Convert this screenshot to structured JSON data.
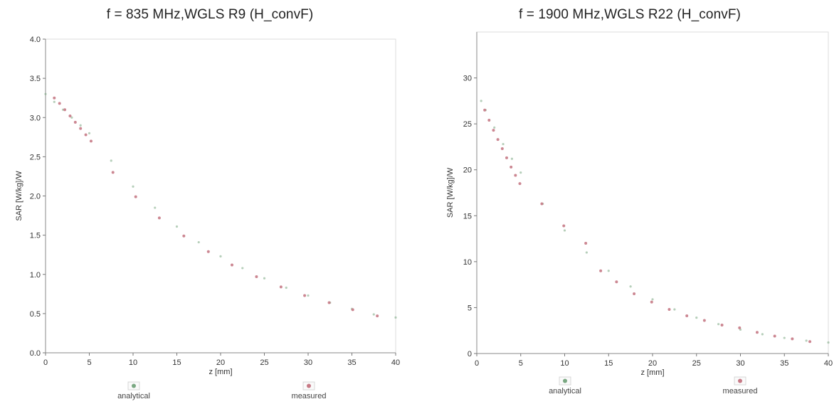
{
  "charts": [
    {
      "title": "f = 835 MHz,WGLS R9 (H_convF)"
    },
    {
      "title": "f = 1900 MHz,WGLS R22 (H_convF)"
    }
  ],
  "chart_data": [
    {
      "type": "scatter",
      "title": "f = 835 MHz,WGLS R9 (H_convF)",
      "xlabel": "z [mm]",
      "ylabel": "SAR [W/kg]/W",
      "xlim": [
        0,
        40
      ],
      "ylim": [
        0,
        4.0
      ],
      "xticks": [
        0,
        5,
        10,
        15,
        20,
        25,
        30,
        35,
        40
      ],
      "yticks": [
        0.0,
        0.5,
        1.0,
        1.5,
        2.0,
        2.5,
        3.0,
        3.5,
        4.0
      ],
      "ytick_labels": [
        "0.0",
        "0.5",
        "1.0",
        "1.5",
        "2.0",
        "2.5",
        "3.0",
        "3.5",
        "4.0"
      ],
      "legend_position": "bottom",
      "series": [
        {
          "name": "analytical",
          "color": "#7aa882",
          "x": [
            0,
            1,
            2,
            3,
            4,
            5,
            7.5,
            10,
            12.5,
            15,
            17.5,
            20,
            22.5,
            25,
            27.5,
            30,
            32.5,
            35,
            37.5,
            40
          ],
          "y": [
            3.3,
            3.2,
            3.1,
            3.0,
            2.9,
            2.8,
            2.45,
            2.12,
            1.85,
            1.61,
            1.41,
            1.23,
            1.08,
            0.95,
            0.83,
            0.73,
            0.64,
            0.56,
            0.49,
            0.45
          ]
        },
        {
          "name": "measured",
          "color": "#c77a86",
          "x": [
            1.0,
            1.6,
            2.2,
            2.8,
            3.4,
            4.0,
            4.6,
            5.2,
            7.7,
            10.3,
            13.0,
            15.8,
            18.6,
            21.3,
            24.1,
            26.9,
            29.6,
            32.4,
            35.1,
            37.9
          ],
          "y": [
            3.25,
            3.18,
            3.1,
            3.02,
            2.94,
            2.86,
            2.78,
            2.7,
            2.3,
            1.99,
            1.72,
            1.49,
            1.29,
            1.12,
            0.97,
            0.84,
            0.73,
            0.64,
            0.55,
            0.47
          ]
        }
      ]
    },
    {
      "type": "scatter",
      "title": "f = 1900 MHz,WGLS R22 (H_convF)",
      "xlabel": "z [mm]",
      "ylabel": "SAR [W/kg]/W",
      "xlim": [
        0,
        40
      ],
      "ylim": [
        0,
        35
      ],
      "xticks": [
        0,
        5,
        10,
        15,
        20,
        25,
        30,
        35,
        40
      ],
      "yticks": [
        0,
        5,
        10,
        15,
        20,
        25,
        30
      ],
      "ytick_labels": [
        "0",
        "5",
        "10",
        "15",
        "20",
        "25",
        "30"
      ],
      "legend_position": "bottom",
      "series": [
        {
          "name": "analytical",
          "color": "#7aa882",
          "x": [
            0.5,
            1,
            2,
            3,
            4,
            5,
            7.5,
            10,
            12.5,
            15,
            17.5,
            20,
            22.5,
            25,
            27.5,
            30,
            32.5,
            35,
            37.5,
            40
          ],
          "y": [
            27.5,
            26.5,
            24.6,
            22.8,
            21.2,
            19.7,
            16.3,
            13.4,
            11.0,
            9.0,
            7.3,
            5.9,
            4.8,
            3.9,
            3.2,
            2.6,
            2.1,
            1.7,
            1.4,
            1.2
          ]
        },
        {
          "name": "measured",
          "color": "#c77a86",
          "x": [
            0.9,
            1.4,
            1.9,
            2.4,
            2.9,
            3.4,
            3.9,
            4.4,
            4.9,
            7.4,
            9.9,
            12.4,
            14.1,
            15.9,
            17.9,
            19.9,
            21.9,
            23.9,
            25.9,
            27.9,
            29.9,
            31.9,
            33.9,
            35.9,
            37.9
          ],
          "y": [
            26.5,
            25.4,
            24.3,
            23.3,
            22.3,
            21.3,
            20.3,
            19.4,
            18.5,
            16.3,
            13.9,
            12.0,
            9.0,
            7.8,
            6.5,
            5.6,
            4.8,
            4.1,
            3.6,
            3.1,
            2.8,
            2.3,
            1.9,
            1.6,
            1.3
          ]
        }
      ]
    }
  ]
}
